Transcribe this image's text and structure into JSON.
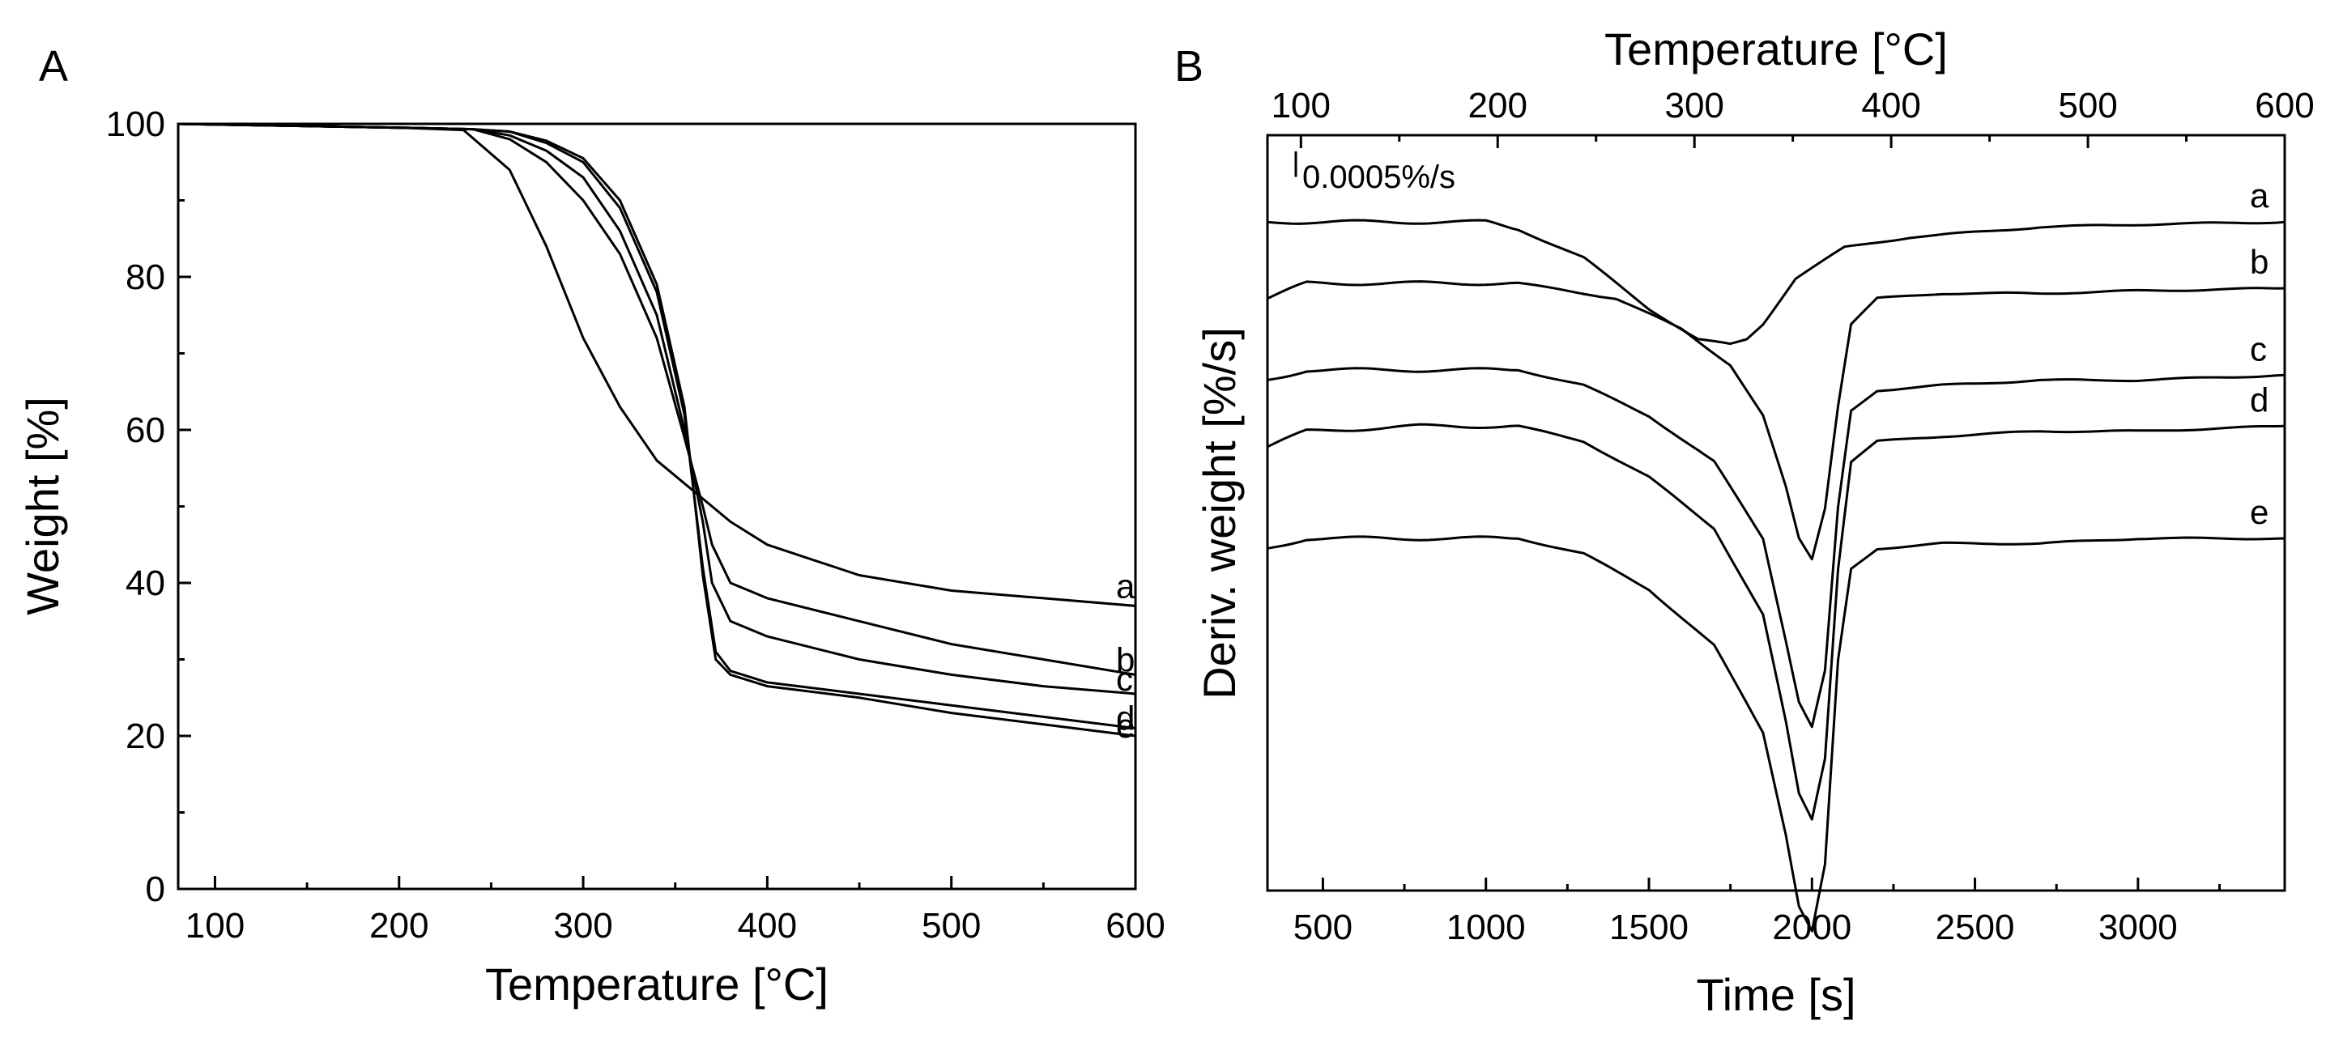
{
  "chart_data": [
    {
      "panel": "A",
      "type": "line",
      "xlabel": "Temperature [°C]",
      "ylabel": "Weight [%]",
      "xlim": [
        80,
        600
      ],
      "ylim": [
        0,
        100
      ],
      "x_ticks": [
        100,
        200,
        300,
        400,
        500,
        600
      ],
      "y_ticks": [
        0,
        20,
        40,
        60,
        80,
        100
      ],
      "grid": false,
      "series": [
        {
          "name": "a",
          "x": [
            80,
            200,
            235,
            260,
            280,
            300,
            320,
            340,
            360,
            380,
            400,
            450,
            500,
            550,
            600
          ],
          "y": [
            100,
            99.5,
            99.2,
            94,
            84,
            72,
            63,
            56,
            52,
            48,
            45,
            41,
            39,
            38,
            37
          ]
        },
        {
          "name": "b",
          "x": [
            80,
            200,
            240,
            260,
            280,
            300,
            320,
            340,
            355,
            365,
            370,
            380,
            400,
            450,
            500,
            550,
            600
          ],
          "y": [
            100,
            99.5,
            99.3,
            98,
            95,
            90,
            83,
            72,
            59,
            50,
            45,
            40,
            38,
            35,
            32,
            30,
            28
          ]
        },
        {
          "name": "c",
          "x": [
            80,
            200,
            240,
            260,
            280,
            300,
            320,
            340,
            355,
            365,
            370,
            380,
            400,
            450,
            500,
            550,
            600
          ],
          "y": [
            100,
            99.5,
            99.3,
            98.5,
            96.5,
            93,
            86,
            75,
            60,
            48,
            40,
            35,
            33,
            30,
            28,
            26.5,
            25.5
          ]
        },
        {
          "name": "d",
          "x": [
            80,
            200,
            240,
            260,
            280,
            300,
            320,
            340,
            355,
            365,
            372,
            380,
            400,
            450,
            500,
            550,
            600
          ],
          "y": [
            100,
            99.5,
            99.3,
            99,
            97.5,
            95,
            89,
            78,
            62,
            42,
            31,
            28.5,
            27,
            25.5,
            24,
            22.5,
            21
          ]
        },
        {
          "name": "e",
          "x": [
            80,
            200,
            240,
            260,
            280,
            300,
            320,
            340,
            355,
            365,
            372,
            380,
            400,
            450,
            500,
            550,
            600
          ],
          "y": [
            100,
            99.5,
            99.3,
            99,
            97.8,
            95.5,
            90,
            79,
            63,
            41,
            30,
            28,
            26.5,
            25,
            23,
            21.5,
            20
          ]
        }
      ],
      "labels": [
        "a",
        "b",
        "c",
        "d",
        "e"
      ]
    },
    {
      "panel": "B",
      "type": "line",
      "xlabel": "Time [s]",
      "x2label": "Temperature [°C]",
      "ylabel": "Deriv. weight [%/s]",
      "xlim": [
        330,
        3450
      ],
      "x_ticks": [
        500,
        1000,
        1500,
        2000,
        2500,
        3000
      ],
      "x2lim": [
        83,
        600
      ],
      "x2_ticks": [
        100,
        200,
        300,
        400,
        500,
        600
      ],
      "ylim": [
        -0.0137,
        0.0011
      ],
      "y_ticks": [],
      "scale_bar": {
        "label": "0.0005%/s",
        "value": 0.0005
      },
      "grid": false,
      "series": [
        {
          "name": "a",
          "x": [
            330,
            700,
            1000,
            1100,
            1300,
            1500,
            1650,
            1750,
            1800,
            1850,
            1950,
            2100,
            2300,
            2500,
            2700,
            3000,
            3450
          ],
          "y": [
            -0.0006,
            -0.0006,
            -0.0006,
            -0.00075,
            -0.0013,
            -0.0023,
            -0.0029,
            -0.003,
            -0.0029,
            -0.0026,
            -0.0017,
            -0.0011,
            -0.0009,
            -0.0008,
            -0.0007,
            -0.00065,
            -0.0006
          ]
        },
        {
          "name": "b",
          "x": [
            330,
            450,
            700,
            1100,
            1400,
            1600,
            1750,
            1850,
            1920,
            1960,
            2000,
            2040,
            2080,
            2120,
            2200,
            2400,
            2700,
            3000,
            3450
          ],
          "y": [
            -0.0021,
            -0.0018,
            -0.0018,
            -0.0018,
            -0.0021,
            -0.0027,
            -0.0034,
            -0.0044,
            -0.0058,
            -0.0068,
            -0.0072,
            -0.0062,
            -0.0042,
            -0.0026,
            -0.0021,
            -0.002,
            -0.002,
            -0.00195,
            -0.0019
          ]
        },
        {
          "name": "c",
          "x": [
            330,
            450,
            800,
            1100,
            1300,
            1500,
            1700,
            1850,
            1920,
            1960,
            2000,
            2040,
            2080,
            2120,
            2200,
            2400,
            2700,
            3000,
            3450
          ],
          "y": [
            -0.0037,
            -0.0035,
            -0.0035,
            -0.0035,
            -0.0038,
            -0.0044,
            -0.0053,
            -0.0068,
            -0.0088,
            -0.01,
            -0.0105,
            -0.0094,
            -0.0062,
            -0.0043,
            -0.0039,
            -0.0038,
            -0.0037,
            -0.0037,
            -0.0036
          ]
        },
        {
          "name": "d",
          "x": [
            330,
            450,
            800,
            1100,
            1300,
            1500,
            1700,
            1850,
            1920,
            1960,
            2000,
            2040,
            2080,
            2120,
            2200,
            2400,
            2700,
            3000,
            3450
          ],
          "y": [
            -0.005,
            -0.0047,
            -0.0046,
            -0.0046,
            -0.0049,
            -0.0056,
            -0.0066,
            -0.0083,
            -0.0104,
            -0.0118,
            -0.0123,
            -0.0111,
            -0.0074,
            -0.0053,
            -0.0049,
            -0.0048,
            -0.0047,
            -0.0047,
            -0.0046
          ]
        },
        {
          "name": "e",
          "x": [
            330,
            450,
            800,
            1100,
            1300,
            1500,
            1700,
            1850,
            1920,
            1960,
            2000,
            2040,
            2080,
            2120,
            2200,
            2400,
            2700,
            3000,
            3450
          ],
          "y": [
            -0.007,
            -0.0068,
            -0.0068,
            -0.0068,
            -0.0071,
            -0.0078,
            -0.0089,
            -0.0106,
            -0.0126,
            -0.014,
            -0.0145,
            -0.0132,
            -0.0092,
            -0.0074,
            -0.007,
            -0.0069,
            -0.0069,
            -0.0068,
            -0.0068
          ]
        }
      ],
      "labels": [
        "a",
        "b",
        "c",
        "d",
        "e"
      ]
    }
  ],
  "panel_labels": {
    "a": "A",
    "b": "B"
  },
  "style": {
    "line_color": "#000000",
    "background": "#ffffff"
  }
}
